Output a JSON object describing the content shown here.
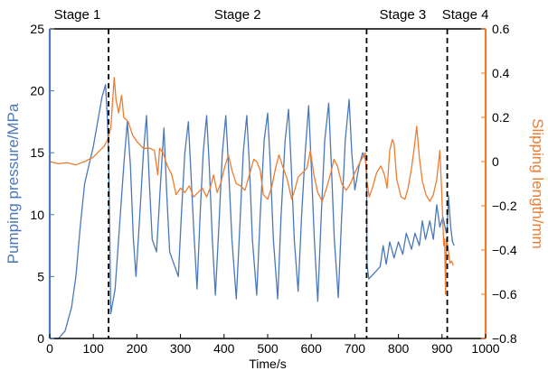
{
  "chart_data": {
    "type": "line",
    "xlabel": "Time/s",
    "ylabel_left": "Pumping pressure/MPa",
    "ylabel_right": "Slipping length/mm",
    "xlim": [
      0,
      1000
    ],
    "ylim_left": [
      0,
      25
    ],
    "ylim_right": [
      -0.8,
      0.6
    ],
    "x_ticks": [
      "0",
      "100",
      "200",
      "300",
      "400",
      "500",
      "600",
      "700",
      "800",
      "900",
      "1000"
    ],
    "y_left_ticks": [
      "0",
      "5",
      "10",
      "15",
      "20",
      "25"
    ],
    "y_right_ticks": [
      "−0.8",
      "−0.6",
      "−0.4",
      "−0.2",
      "0",
      "0.2",
      "0.4",
      "0.6"
    ],
    "stages": [
      {
        "label": "Stage 1",
        "x_end": 135
      },
      {
        "label": "Stage 2",
        "x_end": 727
      },
      {
        "label": "Stage 3",
        "x_end": 912
      },
      {
        "label": "Stage 4",
        "x_end": 930
      }
    ],
    "colors": {
      "pressure": "#4a78b8",
      "slipping": "#ed7d31",
      "axis": "#000000"
    },
    "series": [
      {
        "axis": "left",
        "color": "#4a78b8",
        "points": [
          [
            0,
            0
          ],
          [
            20,
            0
          ],
          [
            35,
            0.6
          ],
          [
            50,
            2.5
          ],
          [
            60,
            5
          ],
          [
            70,
            9
          ],
          [
            80,
            12.5
          ],
          [
            90,
            14
          ],
          [
            100,
            15.5
          ],
          [
            110,
            17.5
          ],
          [
            120,
            19.5
          ],
          [
            128,
            20.5
          ],
          [
            132,
            18
          ],
          [
            135,
            15
          ],
          [
            138,
            8
          ],
          [
            140,
            2
          ],
          [
            150,
            4
          ],
          [
            160,
            9
          ],
          [
            170,
            14
          ],
          [
            178,
            17.5
          ],
          [
            185,
            14
          ],
          [
            192,
            8
          ],
          [
            198,
            5
          ],
          [
            205,
            9
          ],
          [
            215,
            15
          ],
          [
            222,
            18
          ],
          [
            228,
            13
          ],
          [
            235,
            8
          ],
          [
            245,
            7
          ],
          [
            255,
            13
          ],
          [
            262,
            17
          ],
          [
            268,
            12
          ],
          [
            275,
            7
          ],
          [
            285,
            6
          ],
          [
            295,
            5
          ],
          [
            302,
            10
          ],
          [
            310,
            15
          ],
          [
            318,
            17.5
          ],
          [
            323,
            14
          ],
          [
            330,
            9
          ],
          [
            338,
            4
          ],
          [
            345,
            10
          ],
          [
            352,
            15
          ],
          [
            360,
            18
          ],
          [
            366,
            14
          ],
          [
            373,
            8
          ],
          [
            380,
            3.5
          ],
          [
            388,
            9
          ],
          [
            396,
            15
          ],
          [
            404,
            18
          ],
          [
            410,
            14
          ],
          [
            418,
            8
          ],
          [
            428,
            3.2
          ],
          [
            436,
            9
          ],
          [
            444,
            15
          ],
          [
            452,
            18
          ],
          [
            458,
            14
          ],
          [
            465,
            8
          ],
          [
            475,
            3.5
          ],
          [
            483,
            10
          ],
          [
            492,
            16
          ],
          [
            500,
            18.2
          ],
          [
            506,
            14
          ],
          [
            513,
            8
          ],
          [
            523,
            3.2
          ],
          [
            531,
            10
          ],
          [
            540,
            16
          ],
          [
            548,
            18.5
          ],
          [
            554,
            14
          ],
          [
            561,
            8
          ],
          [
            570,
            3.8
          ],
          [
            578,
            10
          ],
          [
            586,
            15
          ],
          [
            594,
            18.8
          ],
          [
            600,
            14
          ],
          [
            607,
            8
          ],
          [
            615,
            3
          ],
          [
            623,
            10
          ],
          [
            631,
            16
          ],
          [
            640,
            19
          ],
          [
            646,
            14
          ],
          [
            653,
            8
          ],
          [
            662,
            3.3
          ],
          [
            670,
            10
          ],
          [
            678,
            16
          ],
          [
            687,
            19.3
          ],
          [
            693,
            15
          ],
          [
            700,
            12
          ],
          [
            710,
            14
          ],
          [
            718,
            15
          ],
          [
            724,
            14.5
          ],
          [
            727,
            13.5
          ],
          [
            728,
            6
          ],
          [
            732,
            4.8
          ],
          [
            745,
            5.3
          ],
          [
            758,
            5.8
          ],
          [
            765,
            7.5
          ],
          [
            772,
            6
          ],
          [
            780,
            7.8
          ],
          [
            790,
            6.5
          ],
          [
            800,
            7.8
          ],
          [
            810,
            6.8
          ],
          [
            818,
            8.5
          ],
          [
            830,
            7.2
          ],
          [
            838,
            8.5
          ],
          [
            848,
            7.5
          ],
          [
            855,
            9.5
          ],
          [
            862,
            8
          ],
          [
            872,
            9.5
          ],
          [
            880,
            8
          ],
          [
            888,
            10.8
          ],
          [
            895,
            9
          ],
          [
            902,
            9.8
          ],
          [
            910,
            8.5
          ],
          [
            912,
            9
          ],
          [
            915,
            11.5
          ],
          [
            920,
            9
          ],
          [
            924,
            7.8
          ],
          [
            928,
            7.5
          ]
        ]
      },
      {
        "axis": "right",
        "color": "#ed7d31",
        "points": [
          [
            0,
            0
          ],
          [
            20,
            -0.01
          ],
          [
            40,
            -0.005
          ],
          [
            60,
            -0.015
          ],
          [
            80,
            0
          ],
          [
            100,
            0.02
          ],
          [
            115,
            0.05
          ],
          [
            125,
            0.07
          ],
          [
            133,
            0.1
          ],
          [
            140,
            0.15
          ],
          [
            148,
            0.38
          ],
          [
            152,
            0.28
          ],
          [
            158,
            0.22
          ],
          [
            165,
            0.3
          ],
          [
            170,
            0.2
          ],
          [
            180,
            0.18
          ],
          [
            190,
            0.12
          ],
          [
            200,
            0.09
          ],
          [
            215,
            0.06
          ],
          [
            230,
            0.06
          ],
          [
            240,
            0.05
          ],
          [
            248,
            -0.06
          ],
          [
            252,
            0.06
          ],
          [
            260,
            0.04
          ],
          [
            270,
            -0.02
          ],
          [
            280,
            -0.06
          ],
          [
            290,
            -0.15
          ],
          [
            300,
            -0.12
          ],
          [
            310,
            -0.14
          ],
          [
            320,
            -0.11
          ],
          [
            330,
            -0.16
          ],
          [
            340,
            -0.14
          ],
          [
            350,
            -0.12
          ],
          [
            360,
            -0.16
          ],
          [
            368,
            -0.12
          ],
          [
            376,
            -0.06
          ],
          [
            384,
            -0.14
          ],
          [
            392,
            -0.1
          ],
          [
            402,
            -0.02
          ],
          [
            410,
            0.03
          ],
          [
            418,
            -0.04
          ],
          [
            428,
            -0.1
          ],
          [
            438,
            -0.11
          ],
          [
            448,
            -0.13
          ],
          [
            458,
            -0.06
          ],
          [
            468,
            0.01
          ],
          [
            475,
            0
          ],
          [
            483,
            -0.04
          ],
          [
            490,
            -0.15
          ],
          [
            500,
            -0.17
          ],
          [
            510,
            -0.11
          ],
          [
            518,
            -0.03
          ],
          [
            526,
            0.03
          ],
          [
            534,
            -0.02
          ],
          [
            545,
            -0.08
          ],
          [
            555,
            -0.17
          ],
          [
            562,
            -0.13
          ],
          [
            570,
            -0.07
          ],
          [
            580,
            -0.05
          ],
          [
            590,
            -0.03
          ],
          [
            598,
            0.05
          ],
          [
            606,
            -0.06
          ],
          [
            615,
            -0.14
          ],
          [
            625,
            -0.18
          ],
          [
            635,
            -0.12
          ],
          [
            645,
            -0.05
          ],
          [
            652,
            0.01
          ],
          [
            660,
            -0.02
          ],
          [
            670,
            -0.1
          ],
          [
            680,
            -0.13
          ],
          [
            690,
            -0.1
          ],
          [
            700,
            -0.05
          ],
          [
            710,
            -0.01
          ],
          [
            718,
            0.02
          ],
          [
            724,
            0.04
          ],
          [
            727,
            -0.08
          ],
          [
            733,
            -0.16
          ],
          [
            740,
            -0.12
          ],
          [
            750,
            -0.05
          ],
          [
            760,
            -0.02
          ],
          [
            768,
            -0.06
          ],
          [
            774,
            -0.12
          ],
          [
            780,
            0.05
          ],
          [
            786,
            0.1
          ],
          [
            790,
            0.08
          ],
          [
            796,
            -0.08
          ],
          [
            806,
            -0.16
          ],
          [
            815,
            -0.17
          ],
          [
            822,
            -0.12
          ],
          [
            830,
            -0.03
          ],
          [
            836,
            0.06
          ],
          [
            842,
            0.16
          ],
          [
            848,
            0.02
          ],
          [
            855,
            -0.09
          ],
          [
            863,
            -0.15
          ],
          [
            872,
            -0.18
          ],
          [
            880,
            -0.15
          ],
          [
            888,
            -0.08
          ],
          [
            895,
            0.05
          ],
          [
            899,
            -0.12
          ],
          [
            904,
            -0.38
          ],
          [
            906,
            -0.35
          ],
          [
            908,
            -0.6
          ],
          [
            910,
            -0.35
          ],
          [
            913,
            -0.38
          ],
          [
            918,
            -0.46
          ],
          [
            922,
            -0.45
          ],
          [
            926,
            -0.47
          ]
        ]
      }
    ]
  }
}
